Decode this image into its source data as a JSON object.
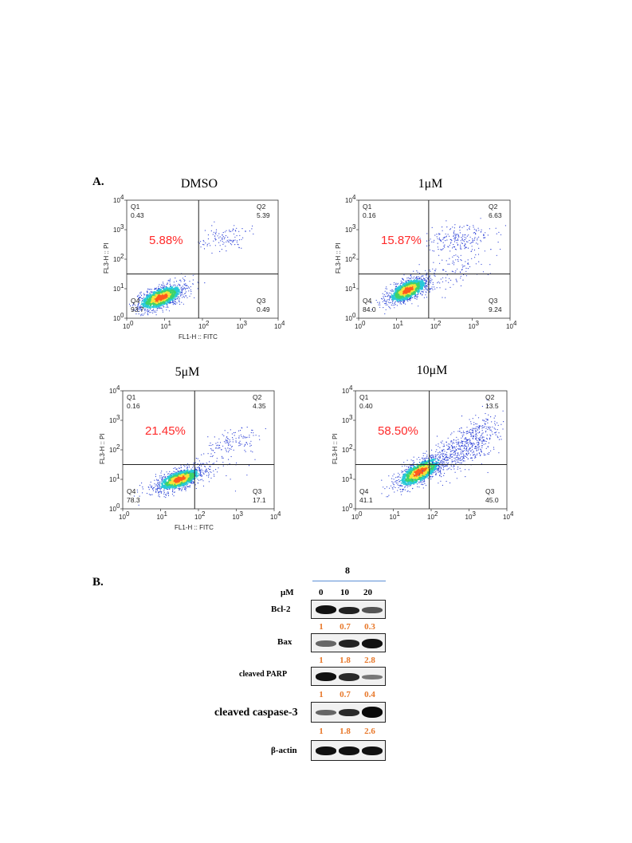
{
  "panel_a": {
    "label": "A.",
    "axis": {
      "x_label": "FL1-H :: FITC",
      "y_label": "FL3-H :: PI",
      "ticks": [
        "10",
        "10",
        "10",
        "10",
        "10"
      ],
      "exponents": [
        "0",
        "1",
        "2",
        "3",
        "4"
      ]
    },
    "plots": [
      {
        "title": "DMSO",
        "percent": "5.88%",
        "show_xlabel": true,
        "quadrants": [
          {
            "name": "Q1",
            "value": "0.43"
          },
          {
            "name": "Q2",
            "value": "5.39"
          },
          {
            "name": "Q3",
            "value": "0.49"
          },
          {
            "name": "Q4",
            "value": "93.7"
          }
        ],
        "gate": {
          "x": 1.9,
          "y": 1.5
        }
      },
      {
        "title": "1μM",
        "percent": "15.87%",
        "show_xlabel": false,
        "quadrants": [
          {
            "name": "Q1",
            "value": "0.16"
          },
          {
            "name": "Q2",
            "value": "6.63"
          },
          {
            "name": "Q3",
            "value": "9.24"
          },
          {
            "name": "Q4",
            "value": "84.0"
          }
        ],
        "gate": {
          "x": 1.85,
          "y": 1.5
        }
      },
      {
        "title": "5μM",
        "percent": "21.45%",
        "show_xlabel": true,
        "quadrants": [
          {
            "name": "Q1",
            "value": "0.16"
          },
          {
            "name": "Q2",
            "value": "4.35"
          },
          {
            "name": "Q3",
            "value": "17.1"
          },
          {
            "name": "Q4",
            "value": "78.3"
          }
        ],
        "gate": {
          "x": 1.9,
          "y": 1.5
        }
      },
      {
        "title": "10μM",
        "percent": "58.50%",
        "show_xlabel": false,
        "quadrants": [
          {
            "name": "Q1",
            "value": "0.40"
          },
          {
            "name": "Q2",
            "value": "13.5"
          },
          {
            "name": "Q3",
            "value": "45.0"
          },
          {
            "name": "Q4",
            "value": "41.1"
          }
        ],
        "gate": {
          "x": 1.95,
          "y": 1.5
        }
      }
    ]
  },
  "panel_b": {
    "label": "B.",
    "compound": "8",
    "unit": "μM",
    "doses": [
      "0",
      "10",
      "20"
    ],
    "colors": {
      "quant": "#e8782a",
      "compound_line": "#5b8fd6"
    },
    "proteins": [
      {
        "name": "Bcl-2",
        "quant": [
          "1",
          "0.7",
          "0.3"
        ]
      },
      {
        "name": "Bax",
        "quant": [
          "1",
          "1.8",
          "2.8"
        ]
      },
      {
        "name": "cleaved PARP",
        "quant": [
          "1",
          "0.7",
          "0.4"
        ]
      },
      {
        "name": "cleaved caspase-3",
        "quant": [
          "1",
          "1.8",
          "2.6"
        ]
      },
      {
        "name": "β-actin",
        "quant": []
      }
    ]
  }
}
